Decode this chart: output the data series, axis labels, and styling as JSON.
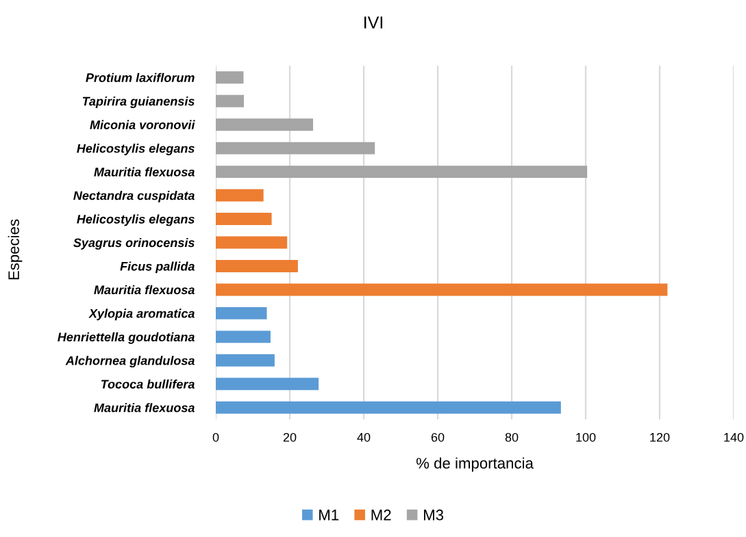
{
  "chart_data": {
    "type": "bar",
    "orientation": "horizontal",
    "title": "IVI",
    "xlabel": "% de importancia",
    "ylabel": "Especies",
    "categories": [
      "Protium laxiflorum",
      "Tapirira guianensis",
      "Miconia voronovii",
      "Helicostylis elegans",
      "Mauritia flexuosa",
      "Nectandra cuspidata",
      "Helicostylis elegans",
      "Syagrus orinocensis",
      "Ficus pallida",
      "Mauritia flexuosa",
      "Xylopia aromatica",
      "Henriettella goudotiana",
      "Alchornea glandulosa",
      "Tococa bullifera",
      "Mauritia flexuosa"
    ],
    "series": [
      {
        "name": "M1",
        "color": "#5b9bd5",
        "values": [
          null,
          null,
          null,
          null,
          null,
          null,
          null,
          null,
          null,
          null,
          13.8,
          14.8,
          15.9,
          27.8,
          93.3
        ]
      },
      {
        "name": "M2",
        "color": "#ed7d31",
        "values": [
          null,
          null,
          null,
          null,
          null,
          12.9,
          15.1,
          19.3,
          22.2,
          122.1,
          null,
          null,
          null,
          null,
          null
        ]
      },
      {
        "name": "M3",
        "color": "#a5a5a5",
        "values": [
          7.5,
          7.6,
          26.3,
          43.0,
          100.4,
          null,
          null,
          null,
          null,
          null,
          null,
          null,
          null,
          null,
          null
        ]
      }
    ],
    "xlim": [
      0,
      140
    ],
    "xticks": [
      0,
      20,
      40,
      60,
      80,
      100,
      120,
      140
    ],
    "grid": "x",
    "legend": "bottom"
  }
}
